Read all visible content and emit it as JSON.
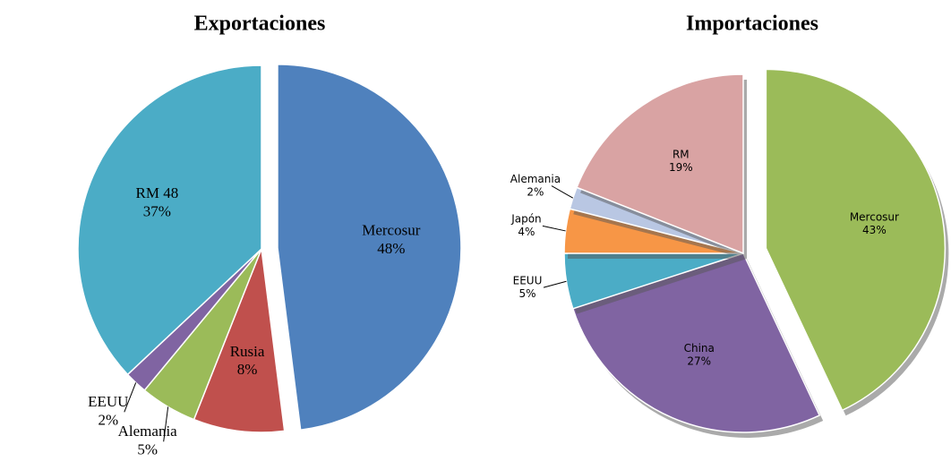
{
  "chart_data": [
    {
      "type": "pie",
      "title": "Exportaciones",
      "categories": [
        "Mercosur",
        "Rusia",
        "Alemania",
        "EEUU",
        "RM 48"
      ],
      "values": [
        48,
        8,
        5,
        2,
        37
      ],
      "value_labels": [
        "48%",
        "8%",
        "5%",
        "2%",
        "37%"
      ],
      "colors": [
        "#4f81bd",
        "#c0504d",
        "#9bbb59",
        "#8064a2",
        "#4bacc6"
      ]
    },
    {
      "type": "pie",
      "title": "Importaciones",
      "categories": [
        "Mercosur",
        "China",
        "EEUU",
        "Japón",
        "Alemania",
        "RM"
      ],
      "values": [
        43,
        27,
        5,
        4,
        2,
        19
      ],
      "value_labels": [
        "43%",
        "27%",
        "5%",
        "4%",
        "2%",
        "19%"
      ],
      "colors": [
        "#9bbb59",
        "#8064a2",
        "#4bacc6",
        "#f79646",
        "#b9c7e3",
        "#d9a3a3"
      ]
    }
  ]
}
